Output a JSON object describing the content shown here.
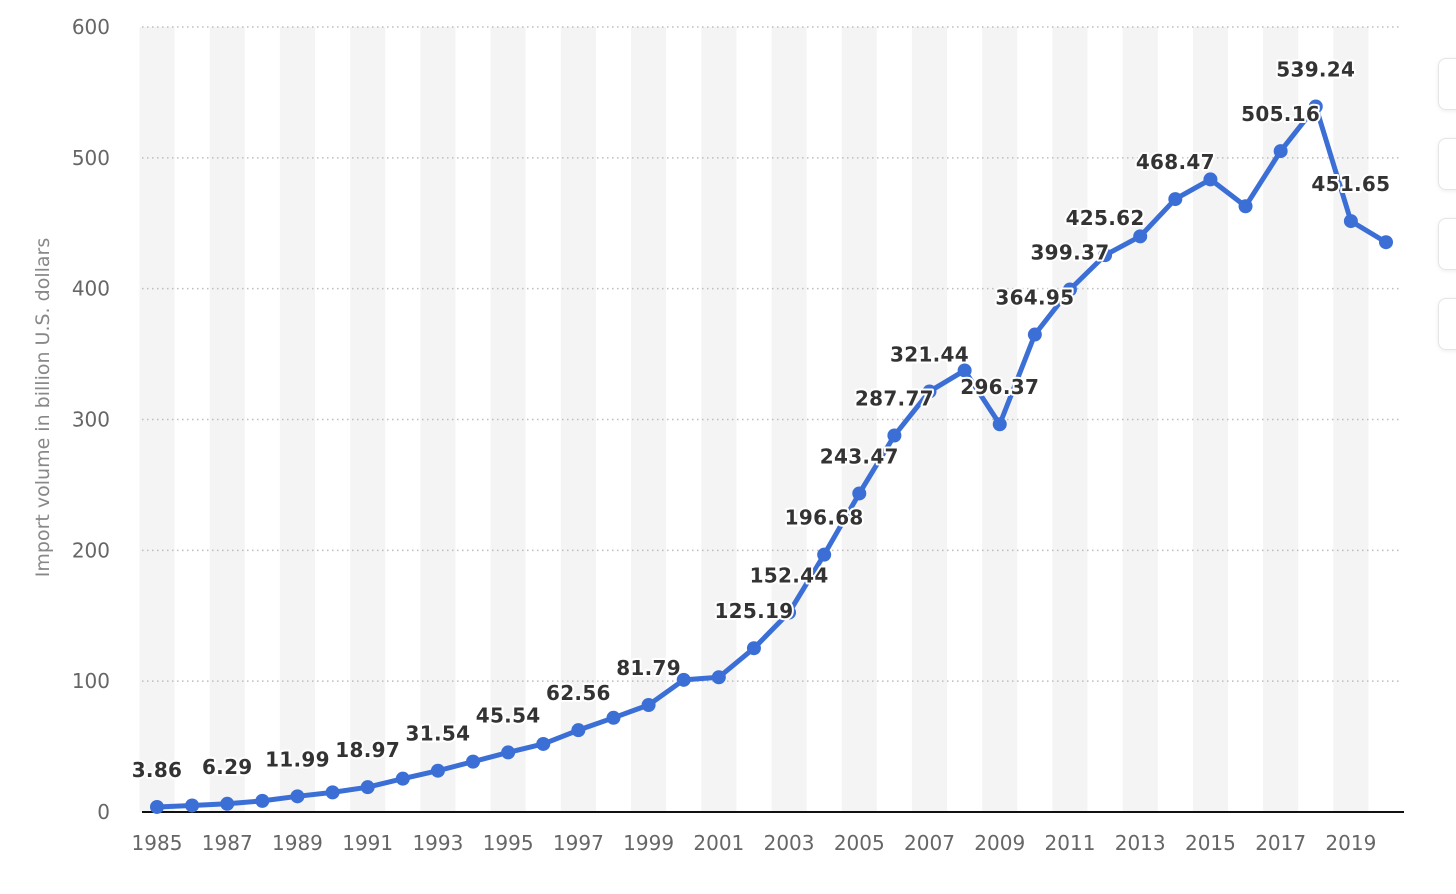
{
  "chart_data": {
    "type": "line",
    "title": "",
    "xlabel": "",
    "ylabel": "Import volume in billion U.S. dollars",
    "xlim": [
      1985,
      2020
    ],
    "ylim": [
      0,
      600
    ],
    "y_ticks": [
      0,
      100,
      200,
      300,
      400,
      500,
      600
    ],
    "x_ticks": [
      1985,
      1987,
      1989,
      1991,
      1993,
      1995,
      1997,
      1999,
      2001,
      2003,
      2005,
      2007,
      2009,
      2011,
      2013,
      2015,
      2017,
      2019
    ],
    "grid": "horizontal dotted",
    "line_color": "#3b6fd6",
    "x": [
      1985,
      1986,
      1987,
      1988,
      1989,
      1990,
      1991,
      1992,
      1993,
      1994,
      1995,
      1996,
      1997,
      1998,
      1999,
      2000,
      2001,
      2002,
      2003,
      2004,
      2005,
      2006,
      2007,
      2008,
      2009,
      2010,
      2011,
      2012,
      2013,
      2014,
      2015,
      2016,
      2017,
      2018,
      2019,
      2020
    ],
    "values": [
      3.86,
      5,
      6.29,
      8.5,
      11.99,
      15,
      18.97,
      25.5,
      31.54,
      38.5,
      45.54,
      52,
      62.56,
      72,
      81.79,
      101,
      103,
      125.19,
      152.44,
      196.68,
      243.47,
      287.77,
      321.44,
      337.5,
      296.37,
      364.95,
      399.37,
      425.62,
      440,
      468.47,
      483.5,
      463,
      505.16,
      539.24,
      451.65,
      435.5
    ],
    "data_labels": [
      {
        "x": 1985,
        "text": "3.86"
      },
      {
        "x": 1987,
        "text": "6.29"
      },
      {
        "x": 1989,
        "text": "11.99"
      },
      {
        "x": 1991,
        "text": "18.97"
      },
      {
        "x": 1993,
        "text": "31.54"
      },
      {
        "x": 1995,
        "text": "45.54"
      },
      {
        "x": 1997,
        "text": "62.56"
      },
      {
        "x": 1999,
        "text": "81.79"
      },
      {
        "x": 2002,
        "text": "125.19"
      },
      {
        "x": 2003,
        "text": "152.44"
      },
      {
        "x": 2004,
        "text": "196.68"
      },
      {
        "x": 2005,
        "text": "243.47"
      },
      {
        "x": 2006,
        "text": "287.77"
      },
      {
        "x": 2007,
        "text": "321.44"
      },
      {
        "x": 2009,
        "text": "296.37"
      },
      {
        "x": 2010,
        "text": "364.95"
      },
      {
        "x": 2011,
        "text": "399.37"
      },
      {
        "x": 2012,
        "text": "425.62"
      },
      {
        "x": 2014,
        "text": "468.47"
      },
      {
        "x": 2017,
        "text": "505.16"
      },
      {
        "x": 2018,
        "text": "539.24"
      },
      {
        "x": 2019,
        "text": "451.65"
      }
    ]
  }
}
